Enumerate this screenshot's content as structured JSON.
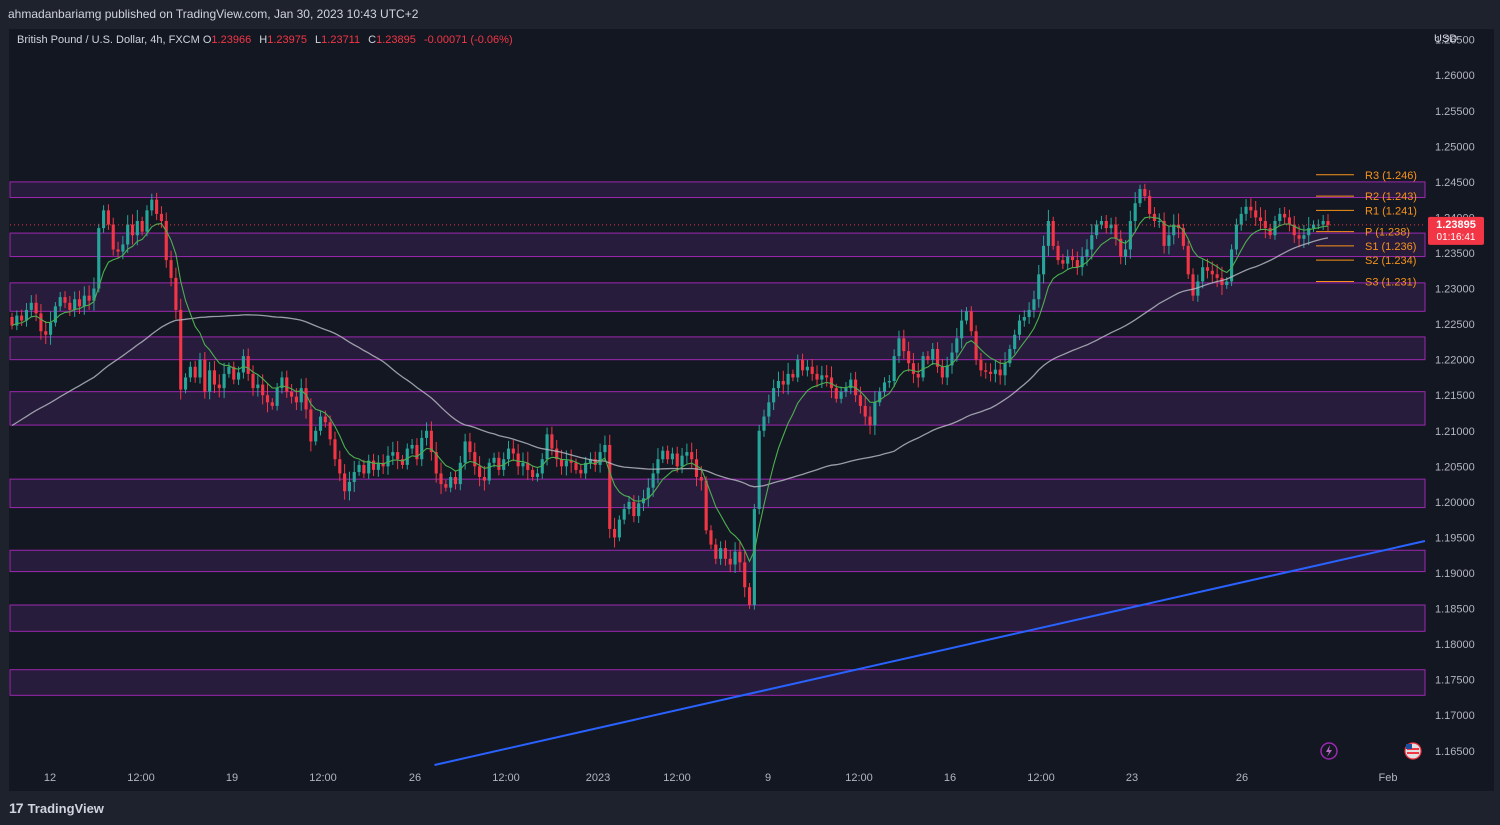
{
  "publisher": "ahmadanbariamg published on TradingView.com, Jan 30, 2023 10:43 UTC+2",
  "symbol": "British Pound / U.S. Dollar, 4h, FXCM",
  "ohlc": {
    "o_label": "O",
    "o": "1.23966",
    "h_label": "H",
    "h": "1.23975",
    "l_label": "L",
    "l": "1.23711",
    "c_label": "C",
    "c": "1.23895",
    "change": "-0.00071 (-0.06%)"
  },
  "currency": "USD",
  "price_tag": {
    "price": "1.23895",
    "countdown": "01:16:41"
  },
  "brand": "TradingView",
  "colors": {
    "up": "#26a69a",
    "down": "#f23645",
    "zone_fill": "#2b1d3f",
    "zone_border": "#9c27b0",
    "ma_fast": "#4caf50",
    "ma_slow": "#b2b5be",
    "trendline": "#2962ff",
    "pivot": "#f7931a",
    "price_tag": "#f23645"
  },
  "icons": [
    "lightning-icon",
    "flag-icon"
  ],
  "chart_data": {
    "type": "candlestick",
    "ylim": [
      1.163,
      1.2665
    ],
    "y_ticks": [
      "1.26500",
      "1.26000",
      "1.25500",
      "1.25000",
      "1.24500",
      "1.24000",
      "1.23500",
      "1.23000",
      "1.22500",
      "1.22000",
      "1.21500",
      "1.21000",
      "1.20500",
      "1.20000",
      "1.19500",
      "1.19000",
      "1.18500",
      "1.18000",
      "1.17500",
      "1.17000",
      "1.16500"
    ],
    "x_ticks": [
      "12",
      "12:00",
      "19",
      "12:00",
      "26",
      "12:00",
      "2023",
      "12:00",
      "9",
      "12:00",
      "16",
      "12:00",
      "23",
      "26",
      "Feb"
    ],
    "zones": [
      [
        1.2428,
        1.245
      ],
      [
        1.2345,
        1.2378
      ],
      [
        1.2268,
        1.2308
      ],
      [
        1.22,
        1.2232
      ],
      [
        1.2108,
        1.2155
      ],
      [
        1.1992,
        1.2032
      ],
      [
        1.1902,
        1.1932
      ],
      [
        1.1818,
        1.1855
      ],
      [
        1.1728,
        1.1764
      ]
    ],
    "pivots": [
      {
        "label": "R3 (1.246)",
        "value": 1.246
      },
      {
        "label": "R2 (1.243)",
        "value": 1.243
      },
      {
        "label": "R1 (1.241)",
        "value": 1.241
      },
      {
        "label": "P (1.238)",
        "value": 1.238
      },
      {
        "label": "S1 (1.236)",
        "value": 1.236
      },
      {
        "label": "S2 (1.234)",
        "value": 1.234
      },
      {
        "label": "S3 (1.231)",
        "value": 1.231
      }
    ],
    "trendline": [
      [
        0.3,
        1.163
      ],
      [
        1.0,
        1.1945
      ]
    ],
    "closes": [
      1.2248,
      1.2262,
      1.2255,
      1.227,
      1.228,
      1.2265,
      1.224,
      1.2235,
      1.2252,
      1.2275,
      1.2288,
      1.228,
      1.227,
      1.2285,
      1.2275,
      1.229,
      1.2283,
      1.23,
      1.2385,
      1.241,
      1.239,
      1.2355,
      1.2352,
      1.2362,
      1.239,
      1.2375,
      1.2395,
      1.238,
      1.241,
      1.2425,
      1.2405,
      1.2395,
      1.234,
      1.2315,
      1.227,
      1.2158,
      1.2175,
      1.219,
      1.2175,
      1.22,
      1.2155,
      1.2185,
      1.2165,
      1.216,
      1.218,
      1.219,
      1.2172,
      1.2182,
      1.2205,
      1.218,
      1.216,
      1.2165,
      1.215,
      1.214,
      1.2135,
      1.216,
      1.2175,
      1.2155,
      1.2148,
      1.214,
      1.216,
      1.213,
      1.2085,
      1.21,
      1.212,
      1.2112,
      1.2088,
      1.206,
      1.204,
      1.2015,
      1.2028,
      1.2042,
      1.2052,
      1.204,
      1.2058,
      1.2045,
      1.2055,
      1.205,
      1.2065,
      1.207,
      1.206,
      1.2052,
      1.2075,
      1.208,
      1.206,
      1.209,
      1.21,
      1.207,
      1.204,
      1.2025,
      1.202,
      1.2035,
      1.2025,
      1.2055,
      1.2085,
      1.207,
      1.205,
      1.2035,
      1.203,
      1.2055,
      1.2062,
      1.2045,
      1.206,
      1.2075,
      1.2068,
      1.205,
      1.2055,
      1.2045,
      1.2035,
      1.204,
      1.206,
      1.2095,
      1.2075,
      1.206,
      1.205,
      1.2058,
      1.2055,
      1.2045,
      1.204,
      1.2055,
      1.206,
      1.2052,
      1.207,
      1.208,
      1.1962,
      1.195,
      1.1975,
      1.199,
      1.2,
      1.198,
      1.1998,
      1.2005,
      1.202,
      1.204,
      1.206,
      1.2072,
      1.206,
      1.2068,
      1.205,
      1.2065,
      1.207,
      1.206,
      1.2035,
      1.203,
      1.196,
      1.194,
      1.192,
      1.1935,
      1.192,
      1.1912,
      1.193,
      1.1915,
      1.188,
      1.1855,
      1.199,
      1.21,
      1.212,
      1.214,
      1.216,
      1.217,
      1.2165,
      1.218,
      1.2175,
      1.22,
      1.2185,
      1.219,
      1.218,
      1.2172,
      1.2178,
      1.2175,
      1.216,
      1.2145,
      1.2155,
      1.216,
      1.2172,
      1.215,
      1.2135,
      1.212,
      1.2108,
      1.214,
      1.2155,
      1.2168,
      1.217,
      1.2205,
      1.223,
      1.2212,
      1.2195,
      1.218,
      1.2175,
      1.2205,
      1.22,
      1.2215,
      1.219,
      1.2175,
      1.2192,
      1.221,
      1.223,
      1.2255,
      1.2268,
      1.224,
      1.22,
      1.2185,
      1.2183,
      1.218,
      1.2186,
      1.2178,
      1.2195,
      1.2215,
      1.2235,
      1.2255,
      1.226,
      1.227,
      1.2285,
      1.232,
      1.236,
      1.2395,
      1.236,
      1.234,
      1.2335,
      1.2345,
      1.234,
      1.233,
      1.2345,
      1.2355,
      1.2375,
      1.239,
      1.2395,
      1.2385,
      1.239,
      1.237,
      1.2345,
      1.2355,
      1.2395,
      1.242,
      1.244,
      1.243,
      1.2405,
      1.2395,
      1.2395,
      1.236,
      1.2375,
      1.239,
      1.2385,
      1.236,
      1.232,
      1.229,
      1.231,
      1.233,
      1.2325,
      1.232,
      1.2315,
      1.2305,
      1.231,
      1.2355,
      1.239,
      1.2405,
      1.2415,
      1.241,
      1.24,
      1.2395,
      1.2385,
      1.2375,
      1.2395,
      1.2405,
      1.24,
      1.239,
      1.2375,
      1.237,
      1.2375,
      1.2385,
      1.239,
      1.239,
      1.2395,
      1.23895
    ]
  }
}
